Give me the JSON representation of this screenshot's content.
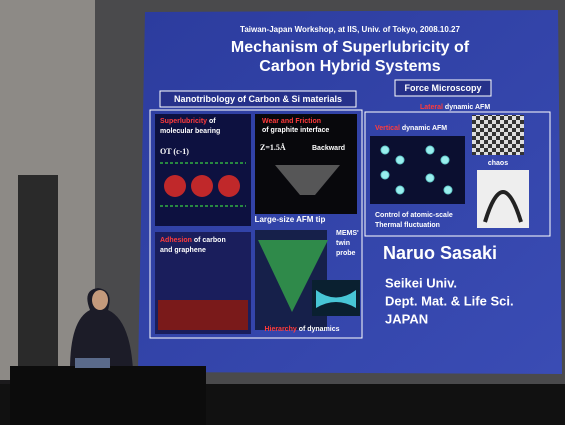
{
  "slide": {
    "header": "Taiwan-Japan Workshop, at IIS, Univ. of Tokyo, 2008.10.27",
    "title": [
      "Mechanism of Superlubricity of",
      "Carbon Hybrid Systems"
    ],
    "left_section": "Nanotribology of Carbon & Si materials",
    "right_section": "Force Microscopy",
    "bearing": {
      "highlight": "Superlubricity",
      "rest": "of",
      "line2": "molecular bearing",
      "formula": "OT (c-1)"
    },
    "wear": {
      "highlight": "Wear and Friction",
      "line2": "of graphite interface",
      "z": "Z=1.5Å",
      "direction": "Backward"
    },
    "tip": "Large-size AFM tip",
    "adhesion": {
      "highlight": "Adhesion",
      "rest": "of carbon",
      "line2": "and graphene"
    },
    "mems": [
      "MEMS'",
      "twin",
      "probe"
    ],
    "hierarchy": {
      "highlight": "Hierarchy",
      "rest": "of dynamics"
    },
    "lateral": {
      "highlight": "Lateral",
      "rest": "dynamic AFM"
    },
    "vertical": {
      "highlight": "Vertical",
      "rest": "dynamic AFM"
    },
    "chaos": "chaos",
    "control": [
      "Control of atomic-scale",
      "Thermal fluctuation"
    ],
    "speaker": {
      "name": "Naruo Sasaki",
      "affiliation": [
        "Seikei Univ.",
        "Dept. Mat. & Life Sci.",
        "JAPAN"
      ]
    }
  }
}
